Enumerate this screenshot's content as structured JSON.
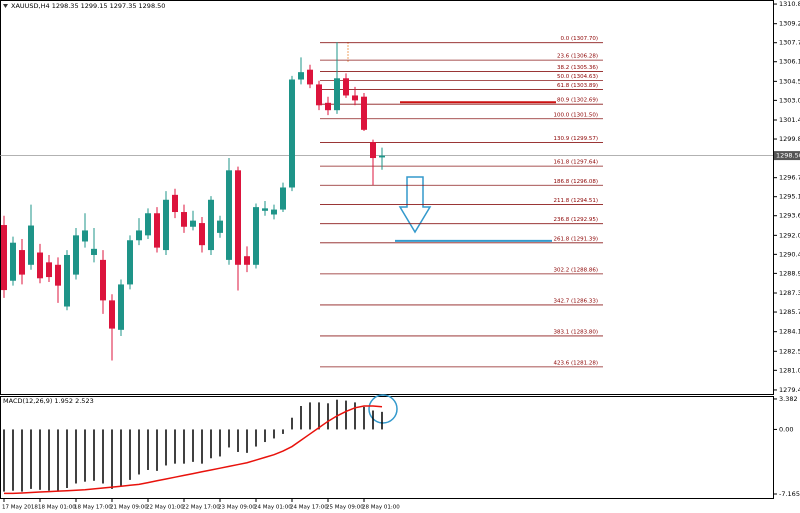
{
  "chart_data": [
    {
      "type": "candlestick",
      "title": "XAUUSD,H4 1298.35 1299.15 1297.35 1298.50",
      "up_color": "#1e9488",
      "down_color": "#dc143c",
      "open": [
        1292.84,
        1288.3,
        1290.8,
        1289.6,
        1290.6,
        1289.8,
        1289.6,
        1286.2,
        1288.8,
        1291.5,
        1290.4,
        1290.0,
        1286.7,
        1284.3,
        1288.0,
        1291.6,
        1292.0,
        1293.8,
        1290.8,
        1295.3,
        1293.9,
        1292.7,
        1293.0,
        1290.8,
        1292.2,
        1290.0,
        1297.3,
        1290.3,
        1289.6,
        1294.0,
        1293.7,
        1294.1,
        1295.9,
        1304.7,
        1305.5,
        1304.3,
        1302.8,
        1302.2,
        1304.8,
        1303.4,
        1303.3,
        1299.6,
        1298.35
      ],
      "high": [
        1293.6,
        1291.9,
        1291.7,
        1294.5,
        1291.3,
        1290.4,
        1290.2,
        1290.8,
        1292.6,
        1293.8,
        1292.6,
        1290.8,
        1287.2,
        1288.4,
        1292.0,
        1293.4,
        1294.2,
        1294.3,
        1295.6,
        1295.8,
        1294.5,
        1294.0,
        1293.5,
        1295.2,
        1293.6,
        1298.3,
        1297.6,
        1291.1,
        1294.6,
        1294.8,
        1294.5,
        1296.3,
        1305.0,
        1306.5,
        1305.9,
        1304.6,
        1303.3,
        1307.75,
        1305.2,
        1304.1,
        1303.6,
        1299.8,
        1299.15
      ],
      "low": [
        1286.9,
        1287.9,
        1288.0,
        1289.2,
        1288.1,
        1288.2,
        1286.5,
        1285.9,
        1288.4,
        1291.0,
        1289.8,
        1285.6,
        1281.8,
        1283.8,
        1287.6,
        1291.2,
        1291.7,
        1290.6,
        1290.4,
        1293.4,
        1292.2,
        1292.4,
        1290.6,
        1290.4,
        1291.8,
        1289.6,
        1287.5,
        1289.0,
        1289.3,
        1293.6,
        1293.3,
        1293.9,
        1295.6,
        1304.3,
        1304.0,
        1302.2,
        1301.8,
        1301.9,
        1303.2,
        1302.6,
        1300.5,
        1296.1,
        1297.35
      ],
      "close": [
        1287.54,
        1291.4,
        1288.8,
        1292.8,
        1288.5,
        1288.6,
        1287.9,
        1290.4,
        1292.0,
        1292.4,
        1290.9,
        1286.7,
        1284.4,
        1288.0,
        1291.6,
        1292.4,
        1293.8,
        1291.0,
        1294.9,
        1293.9,
        1292.7,
        1293.2,
        1291.2,
        1294.9,
        1293.2,
        1297.3,
        1289.6,
        1289.6,
        1294.3,
        1294.2,
        1294.1,
        1295.9,
        1304.7,
        1305.3,
        1304.3,
        1302.6,
        1302.2,
        1304.8,
        1303.4,
        1303.0,
        1300.6,
        1298.3,
        1298.5
      ],
      "x_labels": [
        {
          "index": 0,
          "label": "17 May 2018"
        },
        {
          "index": 4,
          "label": "18 May 01:00"
        },
        {
          "index": 8,
          "label": "18 May 17:00"
        },
        {
          "index": 12,
          "label": "21 May 09:00"
        },
        {
          "index": 16,
          "label": "22 May 01:00"
        },
        {
          "index": 20,
          "label": "22 May 17:00"
        },
        {
          "index": 24,
          "label": "23 May 09:00"
        },
        {
          "index": 28,
          "label": "24 May 01:00"
        },
        {
          "index": 32,
          "label": "24 May 17:00"
        },
        {
          "index": 36,
          "label": "25 May 09:00"
        },
        {
          "index": 40,
          "label": "28 May 01:00"
        }
      ],
      "ylim": [
        1279.07,
        1311.18
      ],
      "yticks": [
        1310.85,
        1309.25,
        {
          "value": 1307.7,
          "label": "1307.70"
        },
        1306.15,
        1304.55,
        {
          "value": 1303.0,
          "label": "1303.00"
        },
        {
          "value": 1301.4,
          "label": "1301.40"
        },
        1299.85,
        {
          "value": 1296.7,
          "label": "1296.70"
        },
        1295.15,
        {
          "value": 1293.6,
          "label": "1293.60"
        },
        {
          "value": 1292.0,
          "label": "1292.00"
        },
        1290.45,
        {
          "value": 1288.9,
          "label": "1288.90"
        },
        {
          "value": 1287.3,
          "label": "1287.30"
        },
        1285.75,
        1284.15,
        1282.55,
        {
          "value": 1281.0,
          "label": "1281.00"
        },
        {
          "value": 1279.4,
          "label": "1279.40"
        }
      ],
      "current_price": {
        "value": 1298.5,
        "label": "1298.50"
      },
      "fib_color": "#8b1a1a",
      "fib_levels": [
        {
          "label": "0.0 (1307.70)",
          "price": 1307.7
        },
        {
          "label": "23.6 (1306.28)",
          "price": 1306.28
        },
        {
          "label": "38.2 (1305.36)",
          "price": 1305.36
        },
        {
          "label": "50.0 (1304.63)",
          "price": 1304.63
        },
        {
          "label": "61.8 (1303.89)",
          "price": 1303.89
        },
        {
          "label": "80.9 (1302.69)",
          "price": 1302.69
        },
        {
          "label": "100.0 (1301.50)",
          "price": 1301.5
        },
        {
          "label": "130.9 (1299.57)",
          "price": 1299.57
        },
        {
          "label": "161.8 (1297.64)",
          "price": 1297.64
        },
        {
          "label": "186.8 (1296.08)",
          "price": 1296.08
        },
        {
          "label": "211.8 (1294.51)",
          "price": 1294.51
        },
        {
          "label": "236.8 (1292.95)",
          "price": 1292.95
        },
        {
          "label": "261.8 (1291.39)",
          "price": 1291.39
        },
        {
          "label": "302.2 (1288.86)",
          "price": 1288.86
        },
        {
          "label": "342.7 (1286.33)",
          "price": 1286.33
        },
        {
          "label": "383.1 (1283.80)",
          "price": 1283.8
        },
        {
          "label": "423.6 (1281.28)",
          "price": 1281.28
        }
      ],
      "resistance": {
        "price": 1302.85,
        "color": "#cc1111"
      },
      "target": {
        "price": 1291.55,
        "color": "#3399cc"
      }
    },
    {
      "type": "macd",
      "label": "MACD(12,26,9) 1.952 2.523",
      "histogram": {
        "color": "#000000",
        "values": [
          -6.9,
          -6.8,
          -6.9,
          -6.6,
          -6.7,
          -6.8,
          -6.9,
          -6.5,
          -6.0,
          -5.8,
          -5.7,
          -6.0,
          -6.6,
          -6.3,
          -5.6,
          -5.0,
          -4.5,
          -4.6,
          -4.0,
          -3.8,
          -3.8,
          -3.6,
          -3.8,
          -3.2,
          -3.0,
          -2.0,
          -2.5,
          -2.6,
          -1.9,
          -1.4,
          -1.0,
          -0.5,
          1.3,
          2.6,
          3.0,
          3.0,
          2.9,
          3.3,
          3.2,
          3.0,
          2.5,
          2.1,
          1.952
        ]
      },
      "signal": {
        "color": "#e8120c",
        "values": [
          -7.1,
          -7.1,
          -7.05,
          -7.0,
          -6.95,
          -6.9,
          -6.85,
          -6.8,
          -6.75,
          -6.7,
          -6.6,
          -6.5,
          -6.4,
          -6.3,
          -6.2,
          -6.1,
          -5.9,
          -5.7,
          -5.5,
          -5.3,
          -5.1,
          -4.9,
          -4.7,
          -4.5,
          -4.3,
          -4.1,
          -3.9,
          -3.7,
          -3.4,
          -3.1,
          -2.8,
          -2.4,
          -1.9,
          -1.2,
          -0.5,
          0.2,
          0.9,
          1.5,
          2.0,
          2.4,
          2.6,
          2.6,
          2.523
        ]
      },
      "ylim": [
        -7.61,
        3.71
      ],
      "yticks": [
        3.382,
        {
          "value": 0,
          "label": "0.00"
        },
        -7.165
      ]
    }
  ]
}
